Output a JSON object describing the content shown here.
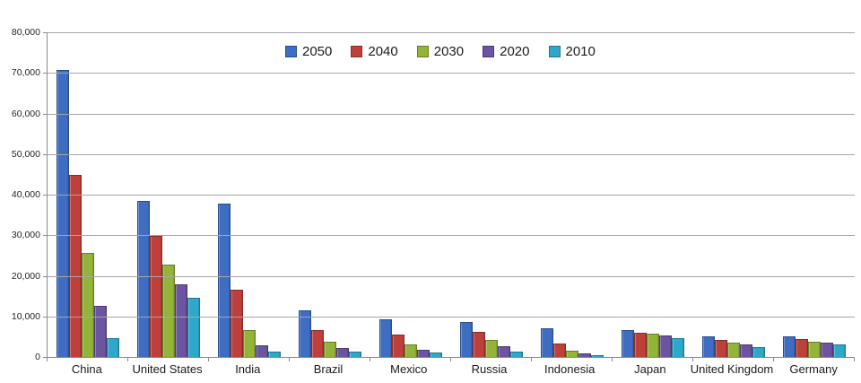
{
  "chart_data": {
    "type": "bar",
    "title": "",
    "xlabel": "",
    "ylabel": "",
    "grid": true,
    "legend_position": "top",
    "categories": [
      "China",
      "United States",
      "India",
      "Brazil",
      "Mexico",
      "Russia",
      "Indonesia",
      "Japan",
      "United Kingdom",
      "Germany"
    ],
    "series": [
      {
        "name": "2050",
        "color": "#3e6dc1",
        "border_color": "#2b4c8c",
        "values": [
          70700,
          38500,
          37700,
          11400,
          9300,
          8600,
          7000,
          6700,
          5100,
          5000
        ]
      },
      {
        "name": "2040",
        "color": "#be403b",
        "border_color": "#8b2b27",
        "values": [
          44800,
          29800,
          16500,
          6600,
          5500,
          6300,
          3300,
          6000,
          4300,
          4400
        ]
      },
      {
        "name": "2030",
        "color": "#93b339",
        "border_color": "#697f26",
        "values": [
          25600,
          22800,
          6700,
          3700,
          3100,
          4300,
          1500,
          5800,
          3600,
          3800
        ]
      },
      {
        "name": "2020",
        "color": "#6b54a0",
        "border_color": "#4b3a74",
        "values": [
          12600,
          17900,
          2800,
          2200,
          1700,
          2600,
          800,
          5200,
          3100,
          3500
        ]
      },
      {
        "name": "2010",
        "color": "#2ea8ca",
        "border_color": "#1f758e",
        "values": [
          4700,
          14500,
          1300,
          1300,
          1000,
          1400,
          400,
          4600,
          2500,
          3100
        ]
      }
    ],
    "y_axis": {
      "min": 0,
      "max": 80000,
      "step": 10000,
      "tick_labels_top_to_bottom": [
        "80,000",
        "70,000",
        "60,000",
        "50,000",
        "40,000",
        "30,000",
        "20,000",
        "10,000",
        "0"
      ]
    },
    "colors": {
      "gridline": "#a6a6a6",
      "axis": "#8c8c8c",
      "text": "#262626",
      "background": "#ffffff"
    }
  }
}
